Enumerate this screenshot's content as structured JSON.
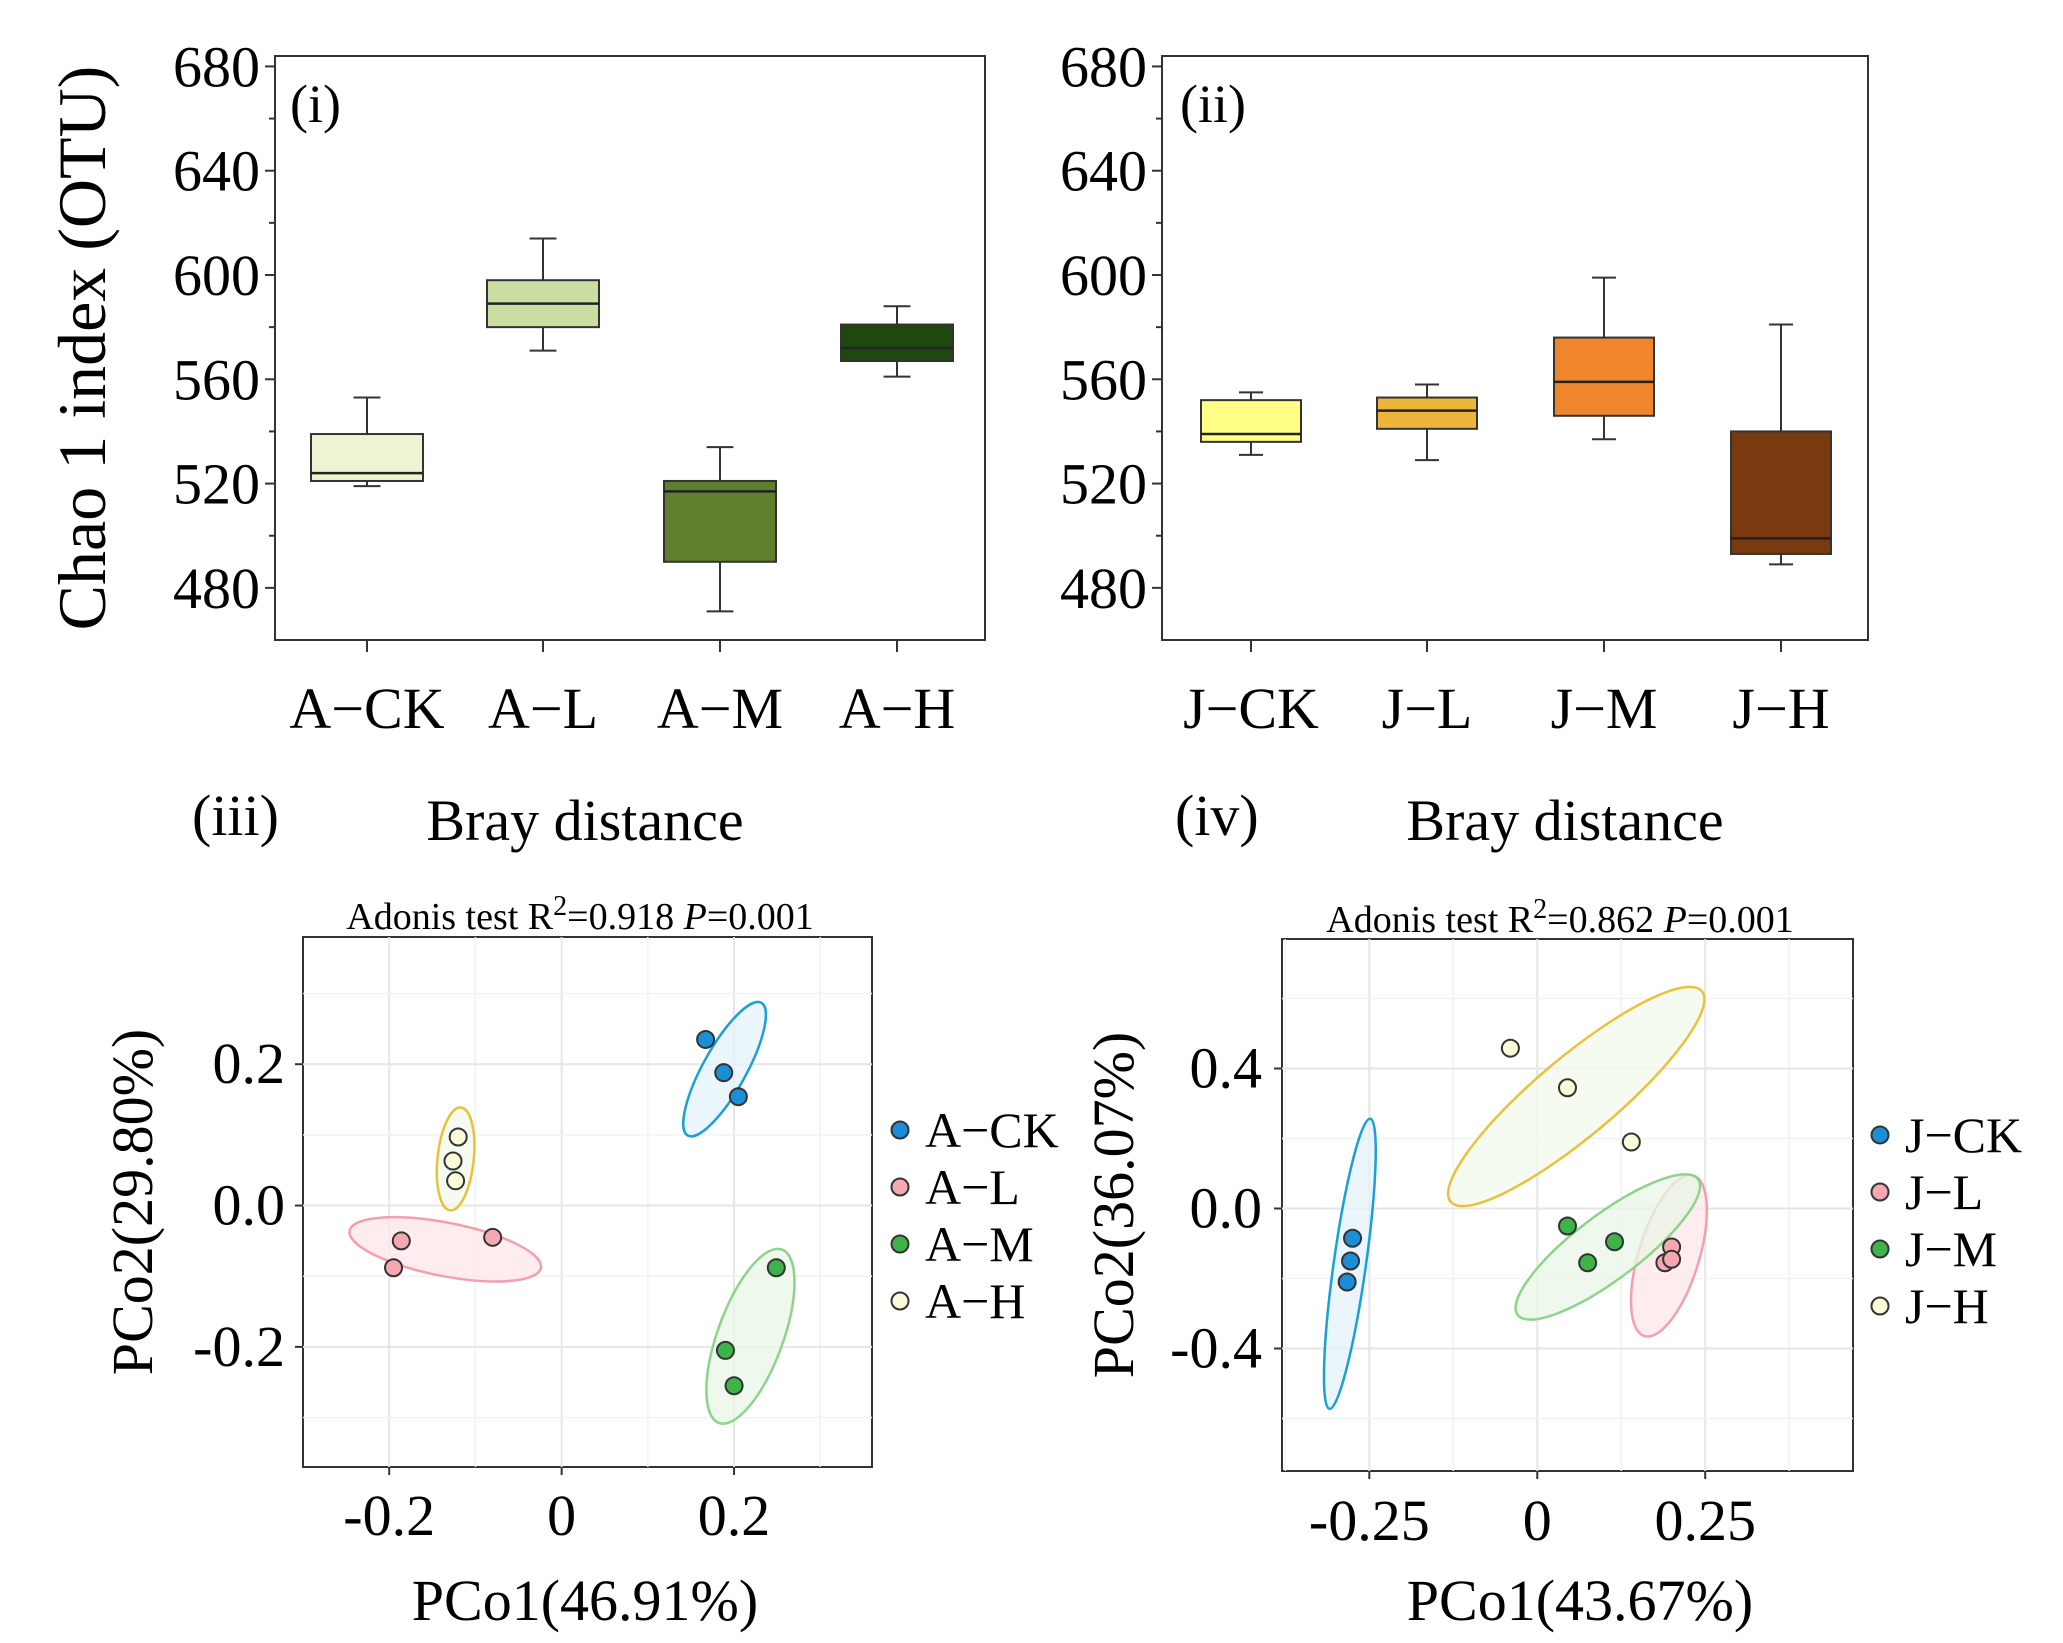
{
  "chart_data": [
    {
      "type": "box",
      "panel": "(i)",
      "ylabel": "Chao 1 index (OTU)",
      "ylim": [
        460,
        684
      ],
      "yticks": [
        480,
        520,
        560,
        600,
        640,
        680
      ],
      "boxes": [
        {
          "label": "A−CK",
          "whisker_low": 519,
          "q1": 521,
          "median": 524,
          "q3": 539,
          "whisker_high": 553,
          "color": "#f0f3d2"
        },
        {
          "label": "A−L",
          "whisker_low": 571,
          "q1": 580,
          "median": 589,
          "q3": 598,
          "whisker_high": 614,
          "color": "#c9dea0"
        },
        {
          "label": "A−M",
          "whisker_low": 471,
          "q1": 490,
          "median": 517,
          "q3": 521,
          "whisker_high": 534,
          "color": "#5e7f2e"
        },
        {
          "label": "A−H",
          "whisker_low": 561,
          "q1": 567,
          "median": 572,
          "q3": 581,
          "whisker_high": 588,
          "color": "#1f4710"
        }
      ]
    },
    {
      "type": "box",
      "panel": "(ii)",
      "ylim": [
        460,
        684
      ],
      "yticks": [
        480,
        520,
        560,
        600,
        640,
        680
      ],
      "boxes": [
        {
          "label": "J−CK",
          "whisker_low": 531,
          "q1": 536,
          "median": 539,
          "q3": 552,
          "whisker_high": 555,
          "color": "#ffff85"
        },
        {
          "label": "J−L",
          "whisker_low": 529,
          "q1": 541,
          "median": 548,
          "q3": 553,
          "whisker_high": 558,
          "color": "#eeb53c"
        },
        {
          "label": "J−M",
          "whisker_low": 537,
          "q1": 546,
          "median": 559,
          "q3": 576,
          "whisker_high": 599,
          "color": "#f0862c"
        },
        {
          "label": "J−H",
          "whisker_low": 489,
          "q1": 493,
          "median": 499,
          "q3": 540,
          "whisker_high": 581,
          "color": "#7a3a0f"
        }
      ]
    },
    {
      "type": "scatter",
      "panel": "(iii)",
      "title": "Bray distance",
      "subtitle_prefix": "Adonis test R",
      "subtitle_sup": "2",
      "subtitle_r2": "=0.918 ",
      "subtitle_p": "P",
      "subtitle_pval": "=0.001",
      "xlabel": "PCo1(46.91%)",
      "ylabel": "PCo2(29.80%)",
      "xlim": [
        -0.3,
        0.36
      ],
      "ylim": [
        -0.37,
        0.38
      ],
      "xticks": [
        -0.2,
        0,
        0.2
      ],
      "xtick_labels": [
        "-0.2",
        "0",
        "0.2"
      ],
      "yticks": [
        -0.2,
        0.0,
        0.2
      ],
      "ytick_labels": [
        "-0.2",
        "0.0",
        "0.2"
      ],
      "groups": [
        {
          "name": "A−CK",
          "color": "#1b8fd6",
          "points": [
            [
              0.167,
              0.235
            ],
            [
              0.188,
              0.188
            ],
            [
              0.205,
              0.154
            ]
          ]
        },
        {
          "name": "A−L",
          "color": "#f6a8b2",
          "points": [
            [
              -0.186,
              -0.05
            ],
            [
              -0.195,
              -0.088
            ],
            [
              -0.08,
              -0.045
            ]
          ]
        },
        {
          "name": "A−M",
          "color": "#3db34a",
          "points": [
            [
              0.249,
              -0.088
            ],
            [
              0.19,
              -0.205
            ],
            [
              0.2,
              -0.255
            ]
          ]
        },
        {
          "name": "A−H",
          "color": "#fbfbd7",
          "points": [
            [
              -0.12,
              0.097
            ],
            [
              -0.126,
              0.063
            ],
            [
              -0.123,
              0.035
            ]
          ]
        }
      ]
    },
    {
      "type": "scatter",
      "panel": "(iv)",
      "title": "Bray distance",
      "subtitle_prefix": "Adonis test R",
      "subtitle_sup": "2",
      "subtitle_r2": "=0.862 ",
      "subtitle_p": "P",
      "subtitle_pval": "=0.001",
      "xlabel": "PCo1(43.67%)",
      "ylabel": "PCo2(36.07%)",
      "xlim": [
        -0.38,
        0.47
      ],
      "ylim": [
        -0.75,
        0.77
      ],
      "xticks": [
        -0.25,
        0,
        0.25
      ],
      "xtick_labels": [
        "-0.25",
        "0",
        "0.25"
      ],
      "yticks": [
        -0.4,
        0.0,
        0.4
      ],
      "ytick_labels": [
        "-0.4",
        "0.0",
        "0.4"
      ],
      "groups": [
        {
          "name": "J−CK",
          "color": "#1b8fd6",
          "points": [
            [
              -0.275,
              -0.085
            ],
            [
              -0.278,
              -0.15
            ],
            [
              -0.283,
              -0.21
            ]
          ]
        },
        {
          "name": "J−L",
          "color": "#f6a8b2",
          "points": [
            [
              0.2,
              -0.11
            ],
            [
              0.19,
              -0.155
            ],
            [
              0.2,
              -0.145
            ]
          ]
        },
        {
          "name": "J−M",
          "color": "#3db34a",
          "points": [
            [
              0.045,
              -0.05
            ],
            [
              0.115,
              -0.095
            ],
            [
              0.075,
              -0.155
            ]
          ]
        },
        {
          "name": "J−H",
          "color": "#fbfbd7",
          "points": [
            [
              -0.04,
              0.458
            ],
            [
              0.045,
              0.345
            ],
            [
              0.14,
              0.19
            ]
          ]
        }
      ]
    }
  ]
}
